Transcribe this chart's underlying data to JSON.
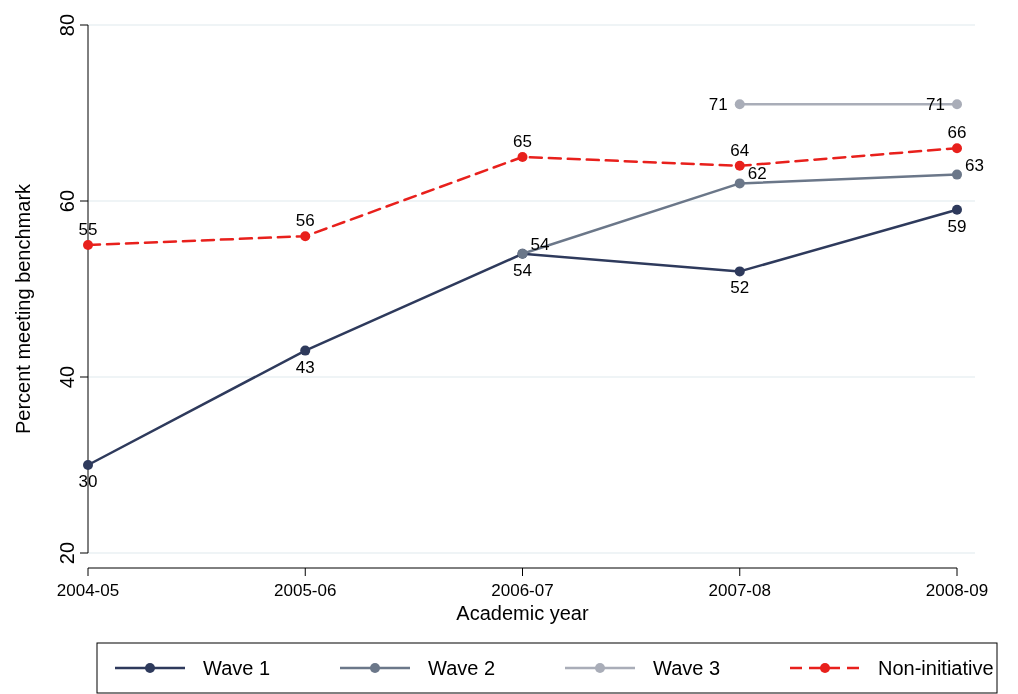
{
  "chart_data": {
    "type": "line",
    "xlabel": "Academic year",
    "ylabel": "Percent meeting benchmark",
    "categories": [
      "2004-05",
      "2005-06",
      "2006-07",
      "2007-08",
      "2008-09"
    ],
    "series": [
      {
        "name": "Wave 1",
        "color": "#2e3a5c",
        "values": [
          30,
          43,
          54,
          52,
          59
        ]
      },
      {
        "name": "Wave 2",
        "color": "#6b7789",
        "values": [
          null,
          null,
          54,
          62,
          63
        ]
      },
      {
        "name": "Wave 3",
        "color": "#a9adb8",
        "values": [
          null,
          null,
          null,
          71,
          71
        ]
      },
      {
        "name": "Non-initiative",
        "color": "#e8201c",
        "values": [
          55,
          56,
          65,
          64,
          66
        ],
        "line_style": "dashed"
      }
    ],
    "ylim": [
      20,
      80
    ],
    "yticks": [
      20,
      40,
      60,
      80
    ],
    "grid": "y",
    "legend": "bottom",
    "marker": "circle",
    "data_labels": true
  }
}
